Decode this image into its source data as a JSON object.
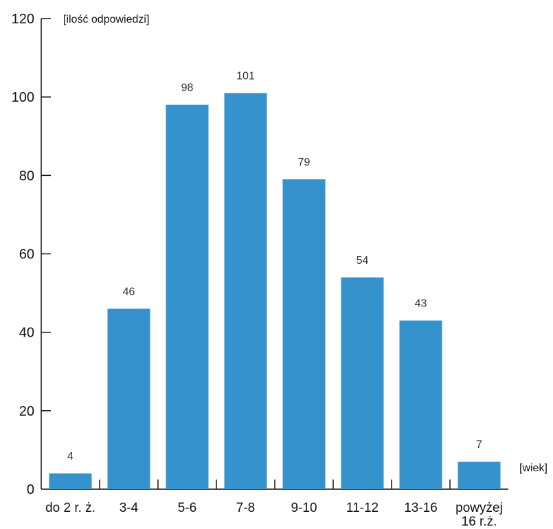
{
  "chart_data": {
    "type": "bar",
    "categories": [
      "do 2 r. ż.",
      "3-4",
      "5-6",
      "7-8",
      "9-10",
      "11-12",
      "13-16",
      "powyżej 16 r.ż."
    ],
    "category_lines": [
      [
        "do 2 r. ż."
      ],
      [
        "3-4"
      ],
      [
        "5-6"
      ],
      [
        "7-8"
      ],
      [
        "9-10"
      ],
      [
        "11-12"
      ],
      [
        "13-16"
      ],
      [
        "powyżej",
        "16 r.ż."
      ]
    ],
    "values": [
      4,
      46,
      98,
      101,
      79,
      54,
      43,
      7
    ],
    "ylabel": "[ilość odpowiedzi]",
    "xlabel": "[wiek]",
    "ylim": [
      0,
      120
    ],
    "yticks": [
      0,
      20,
      40,
      60,
      80,
      100,
      120
    ],
    "grid": false,
    "bar_color": "#3592cc",
    "axis_color": "#111111"
  }
}
